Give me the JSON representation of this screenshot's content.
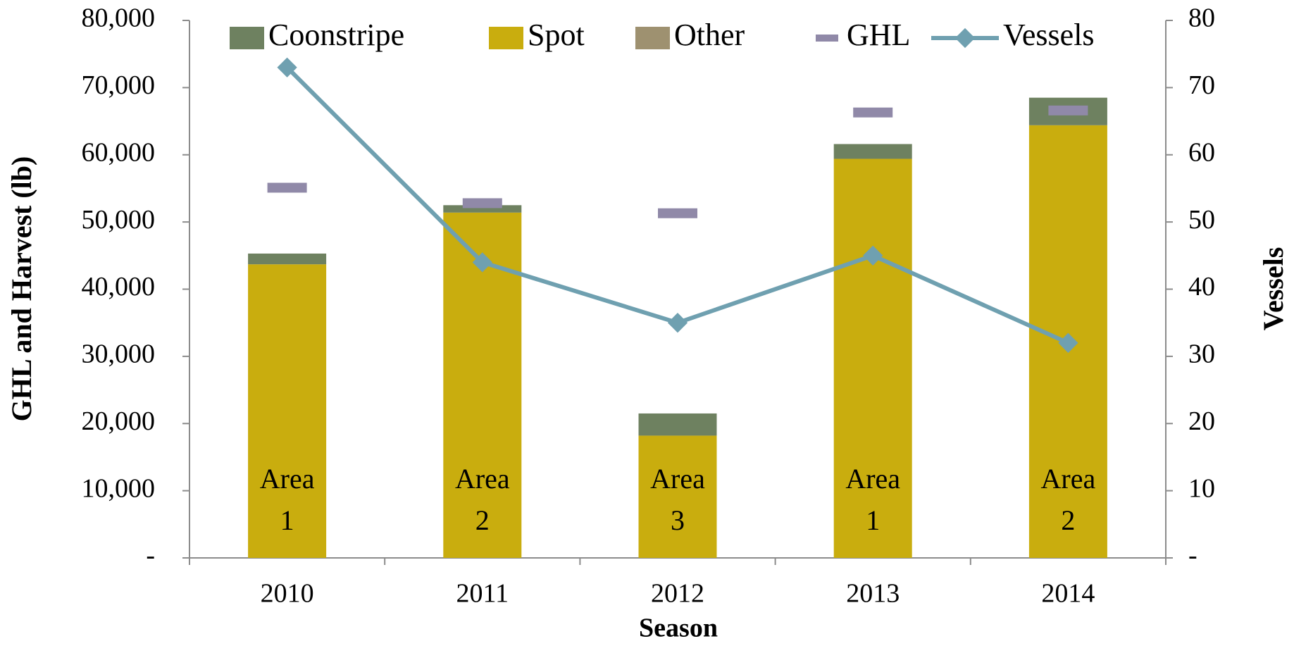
{
  "chart_data": {
    "type": "bar",
    "categories": [
      "2010",
      "2011",
      "2012",
      "2013",
      "2014"
    ],
    "series": [
      {
        "name": "Spot",
        "color": "#c9ad0e",
        "values": [
          43700,
          51400,
          18200,
          59400,
          64400
        ]
      },
      {
        "name": "Coonstripe",
        "color": "#6e8160",
        "values": [
          1600,
          1100,
          3300,
          2200,
          4100
        ]
      },
      {
        "name": "Other",
        "color": "#9e9170",
        "values": [
          0,
          0,
          0,
          0,
          0
        ]
      },
      {
        "name": "GHL",
        "color": "#9089a8",
        "values": [
          55100,
          52800,
          51300,
          66300,
          66600
        ]
      },
      {
        "name": "Vessels",
        "color": "#6fa0b0",
        "axis": "y2",
        "values": [
          73,
          44,
          35,
          45,
          32
        ]
      }
    ],
    "legend_order": [
      "Coonstripe",
      "Spot",
      "Other",
      "GHL",
      "Vessels"
    ],
    "annotations": [
      [
        "Area",
        "1"
      ],
      [
        "Area",
        "2"
      ],
      [
        "Area",
        "3"
      ],
      [
        "Area",
        "1"
      ],
      [
        "Area",
        "2"
      ]
    ],
    "x_label": "Season",
    "y_label": "GHL and Harvest (lb)",
    "y2_label": "Vessels",
    "ylim": [
      0,
      80000
    ],
    "yticks": [
      {
        "value": 0,
        "label": "-"
      },
      {
        "value": 10000,
        "label": "10,000"
      },
      {
        "value": 20000,
        "label": "20,000"
      },
      {
        "value": 30000,
        "label": "30,000"
      },
      {
        "value": 40000,
        "label": "40,000"
      },
      {
        "value": 50000,
        "label": "50,000"
      },
      {
        "value": 60000,
        "label": "60,000"
      },
      {
        "value": 70000,
        "label": "70,000"
      },
      {
        "value": 80000,
        "label": "80,000"
      }
    ],
    "y2lim": [
      0,
      80
    ],
    "y2ticks": [
      {
        "value": 0,
        "label": "-"
      },
      10,
      20,
      30,
      40,
      50,
      60,
      70,
      80
    ],
    "legend": "top"
  }
}
